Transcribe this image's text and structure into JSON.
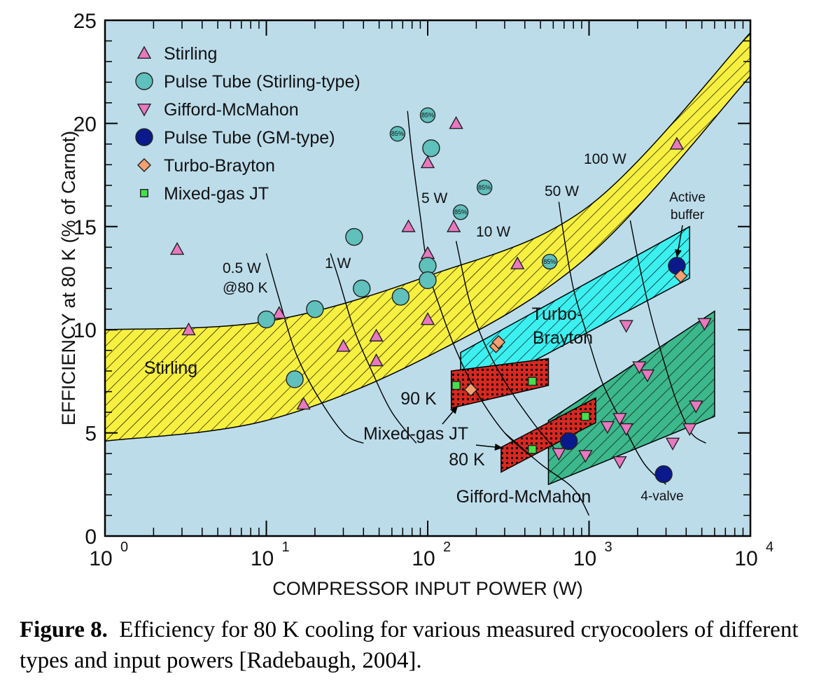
{
  "caption": {
    "label": "Figure 8.",
    "text": "Efficiency for 80 K cooling for various measured cryocoolers of different types and input powers [Radebaugh, 2004]."
  },
  "chart_data": {
    "type": "scatter",
    "xlabel": "COMPRESSOR INPUT POWER  (W)",
    "ylabel": "EFFICIENCY at 80 K  (% of Carnot)",
    "xscale": "log",
    "xlim": [
      1,
      10000
    ],
    "ylim": [
      0,
      25
    ],
    "x_ticks": [
      {
        "base": "10",
        "exp": "0",
        "value": 1
      },
      {
        "base": "10",
        "exp": "1",
        "value": 10
      },
      {
        "base": "10",
        "exp": "2",
        "value": 100
      },
      {
        "base": "10",
        "exp": "3",
        "value": 1000
      },
      {
        "base": "10",
        "exp": "4",
        "value": 10000
      }
    ],
    "y_ticks": [
      "0",
      "5",
      "10",
      "15",
      "20",
      "25"
    ],
    "background_color": "#bcdcea",
    "legend_position": "top-left",
    "legend": [
      {
        "key": "stirling",
        "label": "Stirling",
        "marker": "triangle-up",
        "color": "#e878c0"
      },
      {
        "key": "pt_stirling",
        "label": "Pulse Tube (Stirling-type)",
        "marker": "circle",
        "color": "#5fc0bc"
      },
      {
        "key": "gm",
        "label": "Gifford-McMahon",
        "marker": "triangle-down",
        "color": "#e878c0"
      },
      {
        "key": "pt_gm",
        "label": "Pulse Tube (GM-type)",
        "marker": "circle",
        "color": "#0a1a8c"
      },
      {
        "key": "turbo",
        "label": "Turbo-Brayton",
        "marker": "diamond",
        "color": "#f4a070"
      },
      {
        "key": "jt",
        "label": "Mixed-gas JT",
        "marker": "square",
        "color": "#44e04c"
      }
    ],
    "series": [
      {
        "key": "stirling",
        "points": [
          [
            2.8,
            13.9
          ],
          [
            3.3,
            10.0
          ],
          [
            12,
            10.8
          ],
          [
            17,
            6.4
          ],
          [
            30,
            9.2
          ],
          [
            48,
            9.7
          ],
          [
            48,
            8.5
          ],
          [
            76,
            15.0
          ],
          [
            100,
            18.1
          ],
          [
            100,
            13.7
          ],
          [
            100,
            10.5
          ],
          [
            145,
            15.0
          ],
          [
            150,
            20.0
          ],
          [
            360,
            13.2
          ],
          [
            3500,
            19.0
          ]
        ]
      },
      {
        "key": "pt_stirling",
        "points": [
          [
            10,
            10.5
          ],
          [
            15,
            7.6
          ],
          [
            20,
            11.0
          ],
          [
            35,
            14.5
          ],
          [
            39,
            12.0
          ],
          [
            68,
            11.6
          ],
          [
            100,
            13.1
          ],
          [
            100,
            12.4
          ],
          [
            105,
            18.8
          ]
        ]
      },
      {
        "key": "pt_stirling_85",
        "points": [
          [
            65,
            19.5
          ],
          [
            100,
            20.4
          ],
          [
            160,
            15.7
          ],
          [
            225,
            16.9
          ],
          [
            570,
            13.3
          ]
        ]
      },
      {
        "key": "gm",
        "points": [
          [
            650,
            4.0
          ],
          [
            950,
            3.9
          ],
          [
            1300,
            5.3
          ],
          [
            1550,
            5.7
          ],
          [
            1550,
            3.6
          ],
          [
            1700,
            5.2
          ],
          [
            1700,
            10.2
          ],
          [
            2050,
            8.2
          ],
          [
            2300,
            7.8
          ],
          [
            3300,
            4.5
          ],
          [
            4200,
            5.2
          ],
          [
            4600,
            6.3
          ],
          [
            5200,
            10.3
          ]
        ]
      },
      {
        "key": "pt_gm",
        "points": [
          [
            750,
            4.6
          ],
          [
            2900,
            3.0
          ],
          [
            3500,
            13.1
          ]
        ]
      },
      {
        "key": "turbo",
        "points": [
          [
            185,
            7.1
          ],
          [
            265,
            9.2
          ],
          [
            275,
            9.4
          ],
          [
            3700,
            12.6
          ]
        ]
      },
      {
        "key": "jt",
        "points": [
          [
            150,
            7.3
          ],
          [
            445,
            7.5
          ],
          [
            445,
            4.2
          ],
          [
            950,
            5.8
          ]
        ]
      }
    ],
    "marker_annotation": "85%",
    "bands": [
      {
        "key": "stirling_band",
        "label": "Stirling",
        "color": "#f7f040",
        "upper": [
          [
            1,
            10.0
          ],
          [
            10,
            10.4
          ],
          [
            100,
            12.6
          ],
          [
            1000,
            16.0
          ],
          [
            10000,
            24.4
          ]
        ],
        "lower": [
          [
            1,
            4.6
          ],
          [
            10,
            5.6
          ],
          [
            100,
            8.7
          ],
          [
            1000,
            13.6
          ],
          [
            10000,
            22.3
          ]
        ]
      },
      {
        "key": "turbo_band",
        "label": "Turbo-\nBrayton",
        "color": "#3cf0f0",
        "polygon": [
          [
            160,
            8.9
          ],
          [
            4200,
            15.0
          ],
          [
            4200,
            12.5
          ],
          [
            160,
            6.6
          ]
        ]
      },
      {
        "key": "gm_band",
        "label": "Gifford-McMahon",
        "color": "#3cb88c",
        "polygon": [
          [
            560,
            5.6
          ],
          [
            6000,
            10.9
          ],
          [
            6000,
            5.8
          ],
          [
            560,
            2.5
          ]
        ]
      },
      {
        "key": "jt90_band",
        "label": "90 K",
        "color": "#d82820",
        "polygon": [
          [
            140,
            8.0
          ],
          [
            560,
            8.6
          ],
          [
            560,
            7.3
          ],
          [
            140,
            6.2
          ]
        ]
      },
      {
        "key": "jt80_band",
        "label": "80 K",
        "color": "#d82820",
        "polygon": [
          [
            285,
            4.3
          ],
          [
            1100,
            6.7
          ],
          [
            1100,
            5.5
          ],
          [
            285,
            3.1
          ]
        ]
      }
    ],
    "iso_power_lines": [
      {
        "label": "0.5 W\n@80 K",
        "points": [
          [
            10,
            13.7
          ],
          [
            12,
            11.5
          ],
          [
            15,
            9.0
          ],
          [
            20,
            7.0
          ],
          [
            30,
            5.0
          ],
          [
            40,
            4.5
          ]
        ]
      },
      {
        "label": "1 W",
        "points": [
          [
            25,
            13.7
          ],
          [
            28,
            12.5
          ],
          [
            35,
            10.0
          ],
          [
            45,
            8.0
          ],
          [
            60,
            6.0
          ],
          [
            85,
            4.5
          ]
        ]
      },
      {
        "label": "5 W",
        "points": [
          [
            75,
            20.6
          ],
          [
            80,
            18.5
          ],
          [
            90,
            15.5
          ],
          [
            100,
            13.0
          ],
          [
            120,
            11.0
          ],
          [
            150,
            9.0
          ],
          [
            200,
            7.0
          ],
          [
            300,
            5.0
          ],
          [
            450,
            3.8
          ]
        ]
      },
      {
        "label": "10 W",
        "points": [
          [
            150,
            14.3
          ],
          [
            180,
            11.5
          ],
          [
            220,
            9.5
          ],
          [
            300,
            7.5
          ],
          [
            450,
            5.5
          ],
          [
            650,
            4.0
          ]
        ]
      },
      {
        "label": "50 W",
        "points": [
          [
            650,
            16.2
          ],
          [
            700,
            14.5
          ],
          [
            800,
            12.0
          ],
          [
            950,
            10.0
          ],
          [
            1200,
            7.5
          ],
          [
            1600,
            5.5
          ],
          [
            2200,
            3.5
          ],
          [
            3000,
            2.5
          ]
        ]
      },
      {
        "label": "100 W",
        "points": [
          [
            1800,
            15.3
          ],
          [
            2000,
            13.5
          ],
          [
            2400,
            10.8
          ],
          [
            2900,
            8.5
          ],
          [
            3500,
            6.5
          ],
          [
            4300,
            5.0
          ],
          [
            5300,
            4.5
          ]
        ]
      },
      {
        "label": "",
        "points": [
          [
            300,
            5.0
          ],
          [
            500,
            3.5
          ],
          [
            800,
            2.3
          ],
          [
            1000,
            1.0
          ]
        ]
      }
    ],
    "annotations": [
      {
        "text": "0.5 W"
      },
      {
        "text": "@80 K"
      },
      {
        "text": "1 W"
      },
      {
        "text": "5 W"
      },
      {
        "text": "10 W"
      },
      {
        "text": "50 W"
      },
      {
        "text": "100 W"
      },
      {
        "text": "Active"
      },
      {
        "text": "buffer"
      },
      {
        "text": "Stirling"
      },
      {
        "text": "Turbo-"
      },
      {
        "text": "Brayton"
      },
      {
        "text": "90 K"
      },
      {
        "text": "Mixed-gas JT"
      },
      {
        "text": "80 K"
      },
      {
        "text": "Gifford-McMahon"
      },
      {
        "text": "4-valve"
      }
    ]
  }
}
